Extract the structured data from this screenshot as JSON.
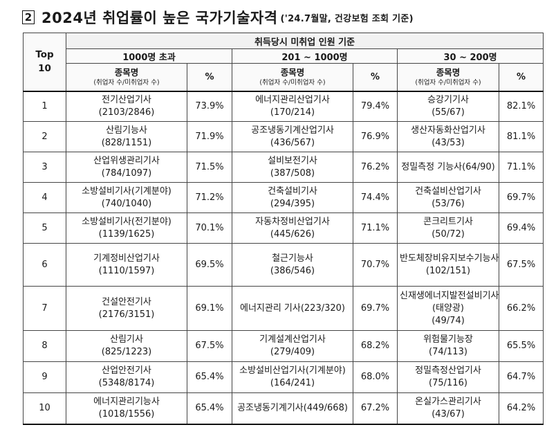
{
  "title": {
    "marker": "2",
    "main": "2024년 취업률이 높은 국가기술자격",
    "sub": "('24.7월말, 건강보험 조회 기준)"
  },
  "header": {
    "rank_label": "Top10",
    "group_label": "취득당시 미취업 인원 기준",
    "bands": [
      "1000명 초과",
      "201 ~ 1000명",
      "30 ~ 200명"
    ],
    "name_col": "종목명",
    "name_sub": "(취업자 수/미취업자 수)",
    "pct_col": "%"
  },
  "rows": [
    {
      "rank": "1",
      "c1": {
        "name": "전기산업기사",
        "counts": "(2103/2846)",
        "pct": "73.9%"
      },
      "c2": {
        "name": "에너지관리산업기사",
        "counts": "(170/214)",
        "pct": "79.4%"
      },
      "c3": {
        "name": "승강기기사",
        "counts": "(55/67)",
        "pct": "82.1%"
      }
    },
    {
      "rank": "2",
      "c1": {
        "name": "산림기능사",
        "counts": "(828/1151)",
        "pct": "71.9%"
      },
      "c2": {
        "name": "공조냉동기계산업기사",
        "counts": "(436/567)",
        "pct": "76.9%"
      },
      "c3": {
        "name": "생산자동화산업기사(43/53)",
        "counts": "",
        "pct": "81.1%"
      }
    },
    {
      "rank": "3",
      "c1": {
        "name": "산업위생관리기사",
        "counts": "(784/1097)",
        "pct": "71.5%"
      },
      "c2": {
        "name": "설비보전기사",
        "counts": "(387/508)",
        "pct": "76.2%"
      },
      "c3": {
        "name": "정밀측정 기능사(64/90)",
        "counts": "",
        "pct": "71.1%"
      }
    },
    {
      "rank": "4",
      "c1": {
        "name": "소방설비기사(기계분야)",
        "counts": "(740/1040)",
        "pct": "71.2%"
      },
      "c2": {
        "name": "건축설비기사",
        "counts": "(294/395)",
        "pct": "74.4%"
      },
      "c3": {
        "name": "건축설비산업기사(53/76)",
        "counts": "",
        "pct": "69.7%"
      }
    },
    {
      "rank": "5",
      "c1": {
        "name": "소방설비기사(전기분야)",
        "counts": "(1139/1625)",
        "pct": "70.1%"
      },
      "c2": {
        "name": "자동차정비산업기사",
        "counts": "(445/626)",
        "pct": "71.1%"
      },
      "c3": {
        "name": "콘크리트기사",
        "counts": "(50/72)",
        "pct": "69.4%"
      }
    },
    {
      "rank": "6",
      "c1": {
        "name": "기계정비산업기사",
        "counts": "(1110/1597)",
        "pct": "69.5%"
      },
      "c2": {
        "name": "철근기능사",
        "counts": "(386/546)",
        "pct": "70.7%"
      },
      "c3": {
        "name": "반도체장비유지보수기능사",
        "counts": "(102/151)",
        "pct": "67.5%"
      }
    },
    {
      "rank": "7",
      "c1": {
        "name": "건설안전기사",
        "counts": "(2176/3151)",
        "pct": "69.1%"
      },
      "c2": {
        "name": "에너지관리 기사(223/320)",
        "counts": "",
        "pct": "69.7%"
      },
      "c3": {
        "name": "신재생에너지발전설비기사(태양광)",
        "counts": "(49/74)",
        "pct": "66.2%"
      }
    },
    {
      "rank": "8",
      "c1": {
        "name": "산림기사",
        "counts": "(825/1223)",
        "pct": "67.5%"
      },
      "c2": {
        "name": "기계설계산업기사",
        "counts": "(279/409)",
        "pct": "68.2%"
      },
      "c3": {
        "name": "위험물기능장",
        "counts": "(74/113)",
        "pct": "65.5%"
      }
    },
    {
      "rank": "9",
      "c1": {
        "name": "산업안전기사",
        "counts": "(5348/8174)",
        "pct": "65.4%"
      },
      "c2": {
        "name": "소방설비산업기사(기계분야)(164/241)",
        "counts": "",
        "pct": "68.0%"
      },
      "c3": {
        "name": "정밀측정산업기사(75/116)",
        "counts": "",
        "pct": "64.7%"
      }
    },
    {
      "rank": "10",
      "c1": {
        "name": "에너지관리기능사",
        "counts": "(1018/1556)",
        "pct": "65.4%"
      },
      "c2": {
        "name": "공조냉동기계기사(449/668)",
        "counts": "",
        "pct": "67.2%"
      },
      "c3": {
        "name": "온실가스관리기사(43/67)",
        "counts": "",
        "pct": "64.2%"
      }
    }
  ]
}
